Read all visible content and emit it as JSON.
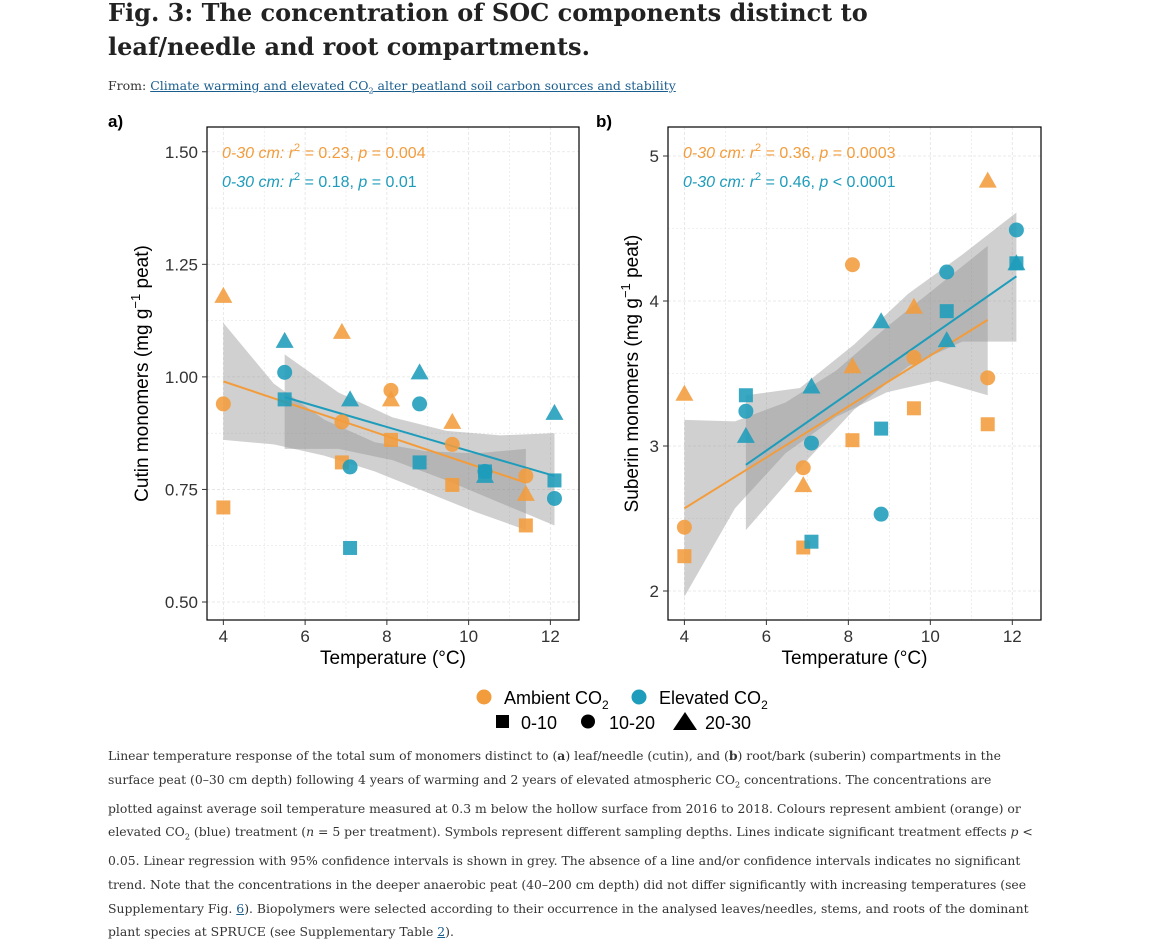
{
  "header": {
    "title": "Fig. 3: The concentration of SOC components distinct to leaf/needle and root compartments.",
    "from_label": "From: ",
    "article_link_pre": "Climate warming and elevated CO",
    "article_link_sub": "2",
    "article_link_post": " alter peatland soil carbon sources and stability"
  },
  "caption": {
    "t1": "Linear temperature response of the total sum of monomers distinct to (",
    "b1": "a",
    "t2": ") leaf/needle (cutin), and (",
    "b2": "b",
    "t3": ") root/bark (suberin) compartments in the surface peat (0–30 cm depth) following 4 years of warming and 2 years of elevated atmospheric CO",
    "sub1": "2",
    "t4": " concentrations. The concentrations are plotted against average soil temperature measured at 0.3 m below the hollow surface from 2016 to 2018. Colours represent ambient (orange) or elevated CO",
    "sub2": "2",
    "t5": " (blue) treatment (",
    "n": "n",
    "t6": " = 5 per treatment). Symbols represent different sampling depths. Lines indicate significant treatment effects ",
    "p": "p",
    "t7": " < 0.05. Linear regression with 95% confidence intervals is shown in grey. The absence of a line and/or confidence intervals indicates no significant trend. Note that the concentrations in the deeper anaerobic peat (40–200 cm depth) did not differ significantly with increasing temperatures (see Supplementary Fig. ",
    "link1": "6",
    "t8": "). Biopolymers were selected according to their occurrence in the analysed leaves/needles, stems, and roots of the dominant plant species at SPRUCE (see Supplementary Table ",
    "link2": "2",
    "t9": ")."
  },
  "colors": {
    "ambient": "#F39C3C",
    "elevated": "#1E9CBB",
    "ci": "#8f8f8f",
    "grid": "#e3e3e3"
  },
  "legend": {
    "ambient_label": "Ambient CO",
    "elevated_label": "Elevated CO",
    "sub": "2",
    "depth_labels": [
      "0-10",
      "10-20",
      "20-30"
    ]
  },
  "chart_data": [
    {
      "type": "scatter",
      "panel_label": "a)",
      "xlabel": "Temperature (°C)",
      "ylabel_pre": "Cutin monomers (mg g",
      "ylabel_sup": "−1",
      "ylabel_post": " peat)",
      "xlim": [
        3.6,
        12.7
      ],
      "ylim": [
        0.46,
        1.555
      ],
      "xticks": [
        4,
        6,
        8,
        10,
        12
      ],
      "yticks": [
        0.5,
        0.75,
        1.0,
        1.25,
        1.5
      ],
      "ytick_labels": [
        "0.50",
        "0.75",
        "1.00",
        "1.25",
        "1.50"
      ],
      "grid": true,
      "annotations": [
        {
          "series": "ambient",
          "pre": "0-30 cm: r",
          "sup": "2",
          "post": " = 0.23, ",
          "p": "p",
          "tail": " = 0.004"
        },
        {
          "series": "elevated",
          "pre": "0-30 cm: r",
          "sup": "2",
          "post": " = 0.18, ",
          "p": "p",
          "tail": " = 0.01"
        }
      ],
      "regressions": [
        {
          "series": "ambient",
          "x": [
            4.0,
            11.4
          ],
          "y_start": 0.99,
          "y_end": 0.765,
          "ci_upper": [
            1.12,
            0.985,
            0.905,
            0.855,
            0.835,
            0.83,
            0.84
          ],
          "ci_lower": [
            0.86,
            0.85,
            0.825,
            0.79,
            0.745,
            0.7,
            0.66
          ]
        },
        {
          "series": "elevated",
          "x": [
            5.5,
            12.1
          ],
          "y_start": 0.955,
          "y_end": 0.78,
          "ci_upper": [
            1.05,
            0.965,
            0.91,
            0.88,
            0.87,
            0.875
          ],
          "ci_lower": [
            0.84,
            0.84,
            0.815,
            0.77,
            0.72,
            0.67
          ]
        }
      ],
      "points": [
        {
          "series": "ambient",
          "depth": "10-20",
          "x": 4.0,
          "y": 0.94
        },
        {
          "series": "ambient",
          "depth": "20-30",
          "x": 4.0,
          "y": 1.18
        },
        {
          "series": "ambient",
          "depth": "0-10",
          "x": 4.0,
          "y": 0.71
        },
        {
          "series": "ambient",
          "depth": "20-30",
          "x": 6.9,
          "y": 1.1
        },
        {
          "series": "ambient",
          "depth": "10-20",
          "x": 6.9,
          "y": 0.9
        },
        {
          "series": "ambient",
          "depth": "0-10",
          "x": 6.9,
          "y": 0.81
        },
        {
          "series": "ambient",
          "depth": "10-20",
          "x": 8.1,
          "y": 0.97
        },
        {
          "series": "ambient",
          "depth": "20-30",
          "x": 8.1,
          "y": 0.95
        },
        {
          "series": "ambient",
          "depth": "0-10",
          "x": 8.1,
          "y": 0.86
        },
        {
          "series": "ambient",
          "depth": "20-30",
          "x": 9.6,
          "y": 0.9
        },
        {
          "series": "ambient",
          "depth": "10-20",
          "x": 9.6,
          "y": 0.85
        },
        {
          "series": "ambient",
          "depth": "0-10",
          "x": 9.6,
          "y": 0.76
        },
        {
          "series": "ambient",
          "depth": "10-20",
          "x": 11.4,
          "y": 0.78
        },
        {
          "series": "ambient",
          "depth": "20-30",
          "x": 11.4,
          "y": 0.74
        },
        {
          "series": "ambient",
          "depth": "0-10",
          "x": 11.4,
          "y": 0.67
        },
        {
          "series": "elevated",
          "depth": "20-30",
          "x": 5.5,
          "y": 1.08
        },
        {
          "series": "elevated",
          "depth": "10-20",
          "x": 5.5,
          "y": 1.01
        },
        {
          "series": "elevated",
          "depth": "0-10",
          "x": 5.5,
          "y": 0.95
        },
        {
          "series": "elevated",
          "depth": "20-30",
          "x": 7.1,
          "y": 0.95
        },
        {
          "series": "elevated",
          "depth": "10-20",
          "x": 7.1,
          "y": 0.8
        },
        {
          "series": "elevated",
          "depth": "0-10",
          "x": 7.1,
          "y": 0.62
        },
        {
          "series": "elevated",
          "depth": "20-30",
          "x": 8.8,
          "y": 1.01
        },
        {
          "series": "elevated",
          "depth": "10-20",
          "x": 8.8,
          "y": 0.94
        },
        {
          "series": "elevated",
          "depth": "0-10",
          "x": 8.8,
          "y": 0.81
        },
        {
          "series": "elevated",
          "depth": "10-20",
          "x": 10.4,
          "y": 0.79
        },
        {
          "series": "elevated",
          "depth": "20-30",
          "x": 10.4,
          "y": 0.78
        },
        {
          "series": "elevated",
          "depth": "0-10",
          "x": 10.4,
          "y": 0.79
        },
        {
          "series": "elevated",
          "depth": "20-30",
          "x": 12.1,
          "y": 0.92
        },
        {
          "series": "elevated",
          "depth": "0-10",
          "x": 12.1,
          "y": 0.77
        },
        {
          "series": "elevated",
          "depth": "10-20",
          "x": 12.1,
          "y": 0.73
        }
      ]
    },
    {
      "type": "scatter",
      "panel_label": "b)",
      "xlabel": "Temperature (°C)",
      "ylabel_pre": "Suberin monomers (mg g",
      "ylabel_sup": "−1",
      "ylabel_post": " peat)",
      "xlim": [
        3.6,
        12.7
      ],
      "ylim": [
        1.8,
        5.2
      ],
      "xticks": [
        4,
        6,
        8,
        10,
        12
      ],
      "yticks": [
        2,
        3,
        4,
        5
      ],
      "ytick_labels": [
        "2",
        "3",
        "4",
        "5"
      ],
      "grid": true,
      "annotations": [
        {
          "series": "ambient",
          "pre": "0-30 cm: r",
          "sup": "2",
          "post": " = 0.36, ",
          "p": "p",
          "tail": " = 0.0003"
        },
        {
          "series": "elevated",
          "pre": "0-30 cm: r",
          "sup": "2",
          "post": " = 0.46, ",
          "p": "p",
          "tail": " < 0.0001"
        }
      ],
      "regressions": [
        {
          "series": "ambient",
          "x": [
            4.0,
            11.4
          ],
          "y_start": 2.57,
          "y_end": 3.87,
          "ci_upper": [
            3.18,
            3.17,
            3.3,
            3.52,
            3.82,
            4.1,
            4.38
          ],
          "ci_lower": [
            1.96,
            2.57,
            2.95,
            3.2,
            3.37,
            3.45,
            3.35
          ]
        },
        {
          "series": "elevated",
          "x": [
            5.5,
            12.1
          ],
          "y_start": 2.87,
          "y_end": 4.17,
          "ci_upper": [
            3.35,
            3.4,
            3.7,
            4.05,
            4.32,
            4.61
          ],
          "ci_lower": [
            2.42,
            2.85,
            3.25,
            3.55,
            3.72,
            3.72
          ]
        }
      ],
      "points": [
        {
          "series": "ambient",
          "depth": "20-30",
          "x": 4.0,
          "y": 3.36
        },
        {
          "series": "ambient",
          "depth": "10-20",
          "x": 4.0,
          "y": 2.44
        },
        {
          "series": "ambient",
          "depth": "0-10",
          "x": 4.0,
          "y": 2.24
        },
        {
          "series": "ambient",
          "depth": "10-20",
          "x": 6.9,
          "y": 2.85
        },
        {
          "series": "ambient",
          "depth": "20-30",
          "x": 6.9,
          "y": 2.73
        },
        {
          "series": "ambient",
          "depth": "0-10",
          "x": 6.9,
          "y": 2.3
        },
        {
          "series": "ambient",
          "depth": "10-20",
          "x": 8.1,
          "y": 4.25
        },
        {
          "series": "ambient",
          "depth": "20-30",
          "x": 8.1,
          "y": 3.55
        },
        {
          "series": "ambient",
          "depth": "0-10",
          "x": 8.1,
          "y": 3.04
        },
        {
          "series": "ambient",
          "depth": "20-30",
          "x": 9.6,
          "y": 3.96
        },
        {
          "series": "ambient",
          "depth": "10-20",
          "x": 9.6,
          "y": 3.61
        },
        {
          "series": "ambient",
          "depth": "0-10",
          "x": 9.6,
          "y": 3.26
        },
        {
          "series": "ambient",
          "depth": "20-30",
          "x": 11.4,
          "y": 4.83
        },
        {
          "series": "ambient",
          "depth": "10-20",
          "x": 11.4,
          "y": 3.47
        },
        {
          "series": "ambient",
          "depth": "0-10",
          "x": 11.4,
          "y": 3.15
        },
        {
          "series": "elevated",
          "depth": "0-10",
          "x": 5.5,
          "y": 3.35
        },
        {
          "series": "elevated",
          "depth": "10-20",
          "x": 5.5,
          "y": 3.24
        },
        {
          "series": "elevated",
          "depth": "20-30",
          "x": 5.5,
          "y": 3.07
        },
        {
          "series": "elevated",
          "depth": "20-30",
          "x": 7.1,
          "y": 3.41
        },
        {
          "series": "elevated",
          "depth": "10-20",
          "x": 7.1,
          "y": 3.02
        },
        {
          "series": "elevated",
          "depth": "0-10",
          "x": 7.1,
          "y": 2.34
        },
        {
          "series": "elevated",
          "depth": "20-30",
          "x": 8.8,
          "y": 3.86
        },
        {
          "series": "elevated",
          "depth": "0-10",
          "x": 8.8,
          "y": 3.12
        },
        {
          "series": "elevated",
          "depth": "10-20",
          "x": 8.8,
          "y": 2.53
        },
        {
          "series": "elevated",
          "depth": "10-20",
          "x": 10.4,
          "y": 4.2
        },
        {
          "series": "elevated",
          "depth": "0-10",
          "x": 10.4,
          "y": 3.93
        },
        {
          "series": "elevated",
          "depth": "20-30",
          "x": 10.4,
          "y": 3.73
        },
        {
          "series": "elevated",
          "depth": "10-20",
          "x": 12.1,
          "y": 4.49
        },
        {
          "series": "elevated",
          "depth": "0-10",
          "x": 12.1,
          "y": 4.26
        },
        {
          "series": "elevated",
          "depth": "20-30",
          "x": 12.1,
          "y": 4.26
        }
      ]
    }
  ]
}
